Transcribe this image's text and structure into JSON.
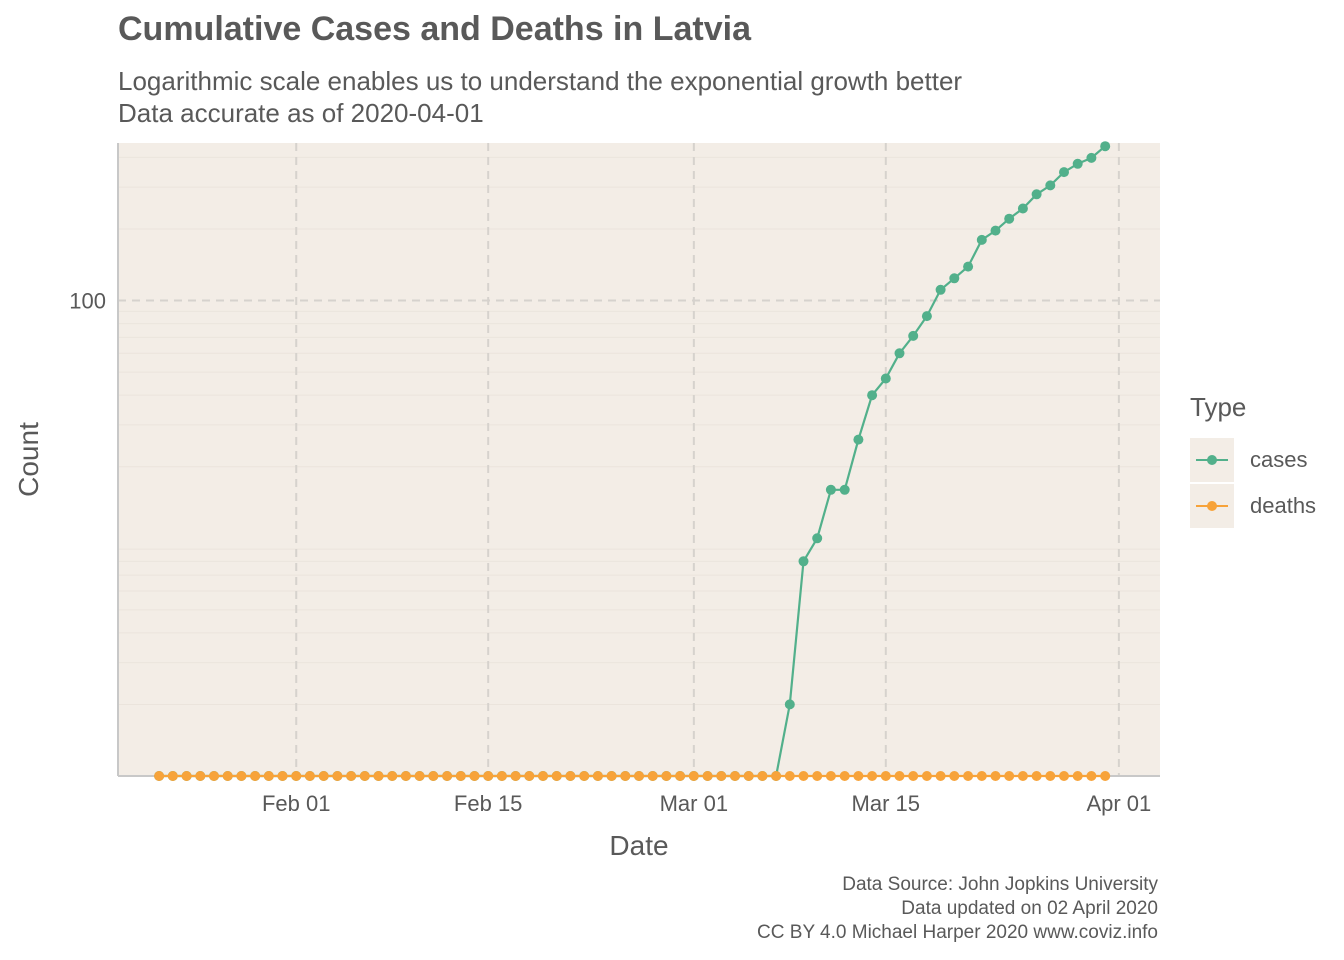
{
  "chart_data": {
    "type": "line",
    "title": "Cumulative Cases and Deaths in Latvia",
    "subtitle": [
      "Logarithmic scale enables us to understand the exponential growth better",
      "Data accurate as of 2020-04-01"
    ],
    "xlabel": "Date",
    "ylabel": "Count",
    "y_scale": "log10",
    "x_ticks": [
      "Feb 01",
      "Feb 15",
      "Mar 01",
      "Mar 15",
      "Apr 01"
    ],
    "x_tick_dates": [
      "2020-02-01",
      "2020-02-15",
      "2020-03-01",
      "2020-03-15",
      "2020-04-01"
    ],
    "y_ticks": [
      100
    ],
    "y_tick_labels": [
      "100"
    ],
    "xlim": [
      "2020-01-19",
      "2020-04-04"
    ],
    "ylim": [
      1,
      460
    ],
    "grid": true,
    "legend": {
      "title": "Type",
      "position": "right"
    },
    "series": [
      {
        "name": "cases",
        "color": "#52b08b",
        "start": "2020-01-22",
        "values": [
          0,
          0,
          0,
          0,
          0,
          0,
          0,
          0,
          0,
          0,
          0,
          0,
          0,
          0,
          0,
          0,
          0,
          0,
          0,
          0,
          0,
          0,
          0,
          0,
          0,
          0,
          0,
          0,
          0,
          0,
          0,
          0,
          0,
          0,
          0,
          0,
          0,
          0,
          0,
          0,
          1,
          1,
          1,
          1,
          1,
          1,
          2,
          8,
          10,
          16,
          16,
          26,
          40,
          47,
          60,
          71,
          86,
          111,
          124,
          139,
          180,
          197,
          221,
          244,
          280,
          305,
          347,
          376,
          398,
          446
        ]
      },
      {
        "name": "deaths",
        "color": "#f7a33a",
        "start": "2020-01-22",
        "values": [
          0,
          0,
          0,
          0,
          0,
          0,
          0,
          0,
          0,
          0,
          0,
          0,
          0,
          0,
          0,
          0,
          0,
          0,
          0,
          0,
          0,
          0,
          0,
          0,
          0,
          0,
          0,
          0,
          0,
          0,
          0,
          0,
          0,
          0,
          0,
          0,
          0,
          0,
          0,
          0,
          0,
          0,
          0,
          0,
          0,
          0,
          0,
          0,
          0,
          0,
          0,
          0,
          0,
          0,
          0,
          0,
          0,
          0,
          0,
          0,
          0,
          0,
          0,
          0,
          0,
          0,
          0,
          0,
          0,
          0
        ]
      }
    ]
  },
  "caption": [
    "Data Source: John Jopkins University",
    "Data updated on 02 April 2020",
    "CC BY 4.0 Michael Harper 2020 www.coviz.info"
  ]
}
